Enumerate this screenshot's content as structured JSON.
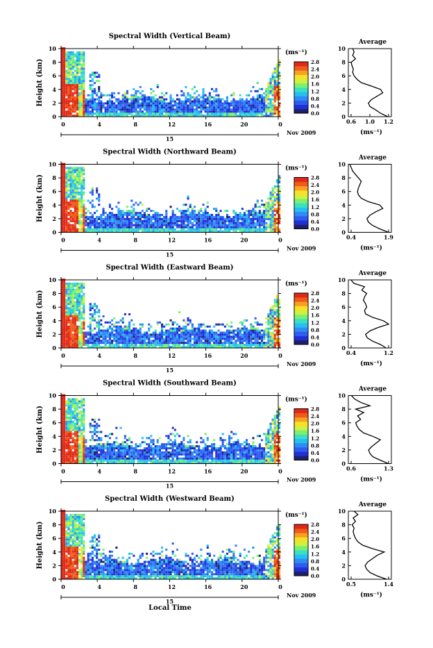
{
  "figure": {
    "xlabel": "Local Time",
    "ylabel": "Height (km)",
    "date_label": "Nov 2009",
    "day_label": "15",
    "unit_label": "(ms⁻¹)",
    "avg_title": "Average",
    "avg_xlabel": "(ms⁻¹)",
    "x_ticks": [
      "0",
      "4",
      "8",
      "12",
      "16",
      "20",
      "0"
    ],
    "y_ticks": [
      "0",
      "2",
      "4",
      "6",
      "8",
      "10"
    ],
    "colorbar_ticks": [
      "0.0",
      "0.4",
      "0.8",
      "1.2",
      "1.6",
      "2.0",
      "2.4",
      "2.8"
    ],
    "colorbar_colors": [
      "#20206a",
      "#2030d8",
      "#2f5cf0",
      "#2f8cf5",
      "#25c0f0",
      "#3ae0c0",
      "#7af070",
      "#d0f040",
      "#f8e028",
      "#f8a020",
      "#f05a1a",
      "#e02818"
    ],
    "panels": [
      {
        "title": "Spectral Width (Vertical Beam)",
        "avg_ticks": [
          "0.6",
          "1.0",
          "1.2"
        ]
      },
      {
        "title": "Spectral Width (Northward Beam)",
        "avg_ticks": [
          "0.4",
          "1.9"
        ]
      },
      {
        "title": "Spectral Width (Eastward Beam)",
        "avg_ticks": [
          "0.4",
          "1.2"
        ]
      },
      {
        "title": "Spectral Width (Southward Beam)",
        "avg_ticks": [
          "0.6",
          "1.3"
        ]
      },
      {
        "title": "Spectral Width (Westward Beam)",
        "avg_ticks": [
          "0.5",
          "1.4"
        ]
      }
    ]
  },
  "chart_data": [
    {
      "type": "heatmap",
      "title": "Spectral Width (Vertical Beam)",
      "xlabel": "",
      "ylabel": "Height (km)",
      "xlim": [
        0,
        24
      ],
      "ylim": [
        0,
        10
      ],
      "colorbar_range": [
        0.0,
        2.8
      ],
      "colorbar_label": "(ms⁻¹)"
    },
    {
      "type": "line",
      "title": "Average",
      "xlabel": "(ms⁻¹)",
      "ylabel": "",
      "xlim": [
        0.6,
        1.2
      ],
      "ylim": [
        0,
        10
      ],
      "x": [
        1.15,
        1.05,
        0.98,
        0.9,
        0.88,
        0.92,
        1.0,
        1.08,
        1.05,
        0.92,
        0.78,
        0.72,
        0.68,
        0.66,
        0.67,
        0.65,
        0.64,
        0.7,
        0.66,
        0.68,
        0.66
      ],
      "y": [
        0.0,
        0.5,
        1.0,
        1.5,
        2.0,
        2.5,
        3.0,
        3.5,
        4.0,
        4.5,
        5.0,
        5.5,
        6.0,
        6.5,
        7.0,
        7.5,
        8.0,
        8.5,
        9.0,
        9.5,
        10.0
      ]
    },
    {
      "type": "heatmap",
      "title": "Spectral Width (Northward Beam)",
      "xlabel": "",
      "ylabel": "Height (km)",
      "xlim": [
        0,
        24
      ],
      "ylim": [
        0,
        10
      ],
      "colorbar_range": [
        0.0,
        2.8
      ],
      "colorbar_label": "(ms⁻¹)"
    },
    {
      "type": "line",
      "title": "Average",
      "xlabel": "(ms⁻¹)",
      "ylabel": "",
      "xlim": [
        0.4,
        1.9
      ],
      "ylim": [
        0,
        10
      ],
      "x": [
        1.8,
        1.5,
        1.25,
        1.1,
        1.05,
        1.15,
        1.35,
        1.6,
        1.5,
        1.1,
        0.85,
        0.75,
        0.72,
        0.75,
        0.8,
        0.85,
        0.75,
        0.65,
        0.55,
        0.5,
        0.45
      ],
      "y": [
        0.0,
        0.5,
        1.0,
        1.5,
        2.0,
        2.5,
        3.0,
        3.5,
        4.0,
        4.5,
        5.0,
        5.5,
        6.0,
        6.5,
        7.0,
        7.5,
        8.0,
        8.5,
        9.0,
        9.5,
        10.0
      ]
    },
    {
      "type": "heatmap",
      "title": "Spectral Width (Eastward Beam)",
      "xlabel": "",
      "ylabel": "Height (km)",
      "xlim": [
        0,
        24
      ],
      "ylim": [
        0,
        10
      ],
      "colorbar_range": [
        0.0,
        2.8
      ],
      "colorbar_label": "(ms⁻¹)"
    },
    {
      "type": "line",
      "title": "Average",
      "xlabel": "(ms⁻¹)",
      "ylabel": "",
      "xlim": [
        0.4,
        1.2
      ],
      "ylim": [
        0,
        10
      ],
      "x": [
        1.1,
        1.0,
        0.85,
        0.75,
        0.72,
        0.8,
        0.95,
        1.15,
        1.05,
        0.85,
        0.72,
        0.7,
        0.74,
        0.72,
        0.68,
        0.7,
        0.74,
        0.65,
        0.7,
        0.5,
        0.45
      ],
      "y": [
        0.0,
        0.5,
        1.0,
        1.5,
        2.0,
        2.5,
        3.0,
        3.5,
        4.0,
        4.5,
        5.0,
        5.5,
        6.0,
        6.5,
        7.0,
        7.5,
        8.0,
        8.5,
        9.0,
        9.5,
        10.0
      ]
    },
    {
      "type": "heatmap",
      "title": "Spectral Width (Southward Beam)",
      "xlabel": "",
      "ylabel": "Height (km)",
      "xlim": [
        0,
        24
      ],
      "ylim": [
        0,
        10
      ],
      "colorbar_range": [
        0.0,
        2.8
      ],
      "colorbar_label": "(ms⁻¹)"
    },
    {
      "type": "line",
      "title": "Average",
      "xlabel": "(ms⁻¹)",
      "ylabel": "",
      "xlim": [
        0.6,
        1.3
      ],
      "ylim": [
        0,
        10
      ],
      "x": [
        1.25,
        1.12,
        1.0,
        0.95,
        0.93,
        0.98,
        1.05,
        1.12,
        1.0,
        0.85,
        0.78,
        0.74,
        0.72,
        0.8,
        0.75,
        0.85,
        0.72,
        0.95,
        0.8,
        0.7,
        0.65
      ],
      "y": [
        0.0,
        0.5,
        1.0,
        1.5,
        2.0,
        2.5,
        3.0,
        3.5,
        4.0,
        4.5,
        5.0,
        5.5,
        6.0,
        6.5,
        7.0,
        7.5,
        8.0,
        8.5,
        9.0,
        9.5,
        10.0
      ]
    },
    {
      "type": "heatmap",
      "title": "Spectral Width (Westward Beam)",
      "xlabel": "Local Time",
      "ylabel": "Height (km)",
      "xlim": [
        0,
        24
      ],
      "ylim": [
        0,
        10
      ],
      "colorbar_range": [
        0.0,
        2.8
      ],
      "colorbar_label": "(ms⁻¹)"
    },
    {
      "type": "line",
      "title": "Average",
      "xlabel": "(ms⁻¹)",
      "ylabel": "",
      "xlim": [
        0.5,
        1.4
      ],
      "ylim": [
        0,
        10
      ],
      "x": [
        1.3,
        1.1,
        0.95,
        0.88,
        0.85,
        0.9,
        1.0,
        1.1,
        1.25,
        1.0,
        0.8,
        0.7,
        0.65,
        0.62,
        0.6,
        0.62,
        0.58,
        0.65,
        0.6,
        0.7,
        0.62
      ],
      "y": [
        0.0,
        0.5,
        1.0,
        1.5,
        2.0,
        2.5,
        3.0,
        3.5,
        4.0,
        4.5,
        5.0,
        5.5,
        6.0,
        6.5,
        7.0,
        7.5,
        8.0,
        8.5,
        9.0,
        9.5,
        10.0
      ]
    }
  ]
}
